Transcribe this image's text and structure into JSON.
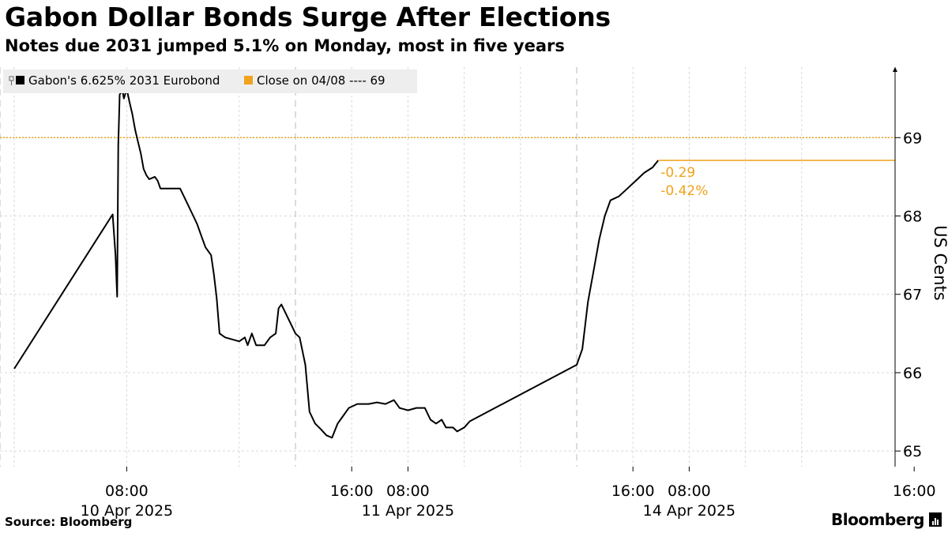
{
  "title": "Gabon Dollar Bonds Surge After Elections",
  "subtitle": "Notes due 2031 jumped 5.1% on Monday, most in five years",
  "source": "Source: Bloomberg",
  "logo_text": "Bloomberg",
  "colors": {
    "series": "#000000",
    "reference": "#f0a31c",
    "grid": "#d9d9d9",
    "legend_bg": "#eeeeee"
  },
  "chart_data": {
    "type": "line",
    "title": "Gabon Dollar Bonds Surge After Elections",
    "subtitle": "Notes due 2031 jumped 5.1% on Monday, most in five years",
    "ylabel": "US Cents",
    "ylim": [
      64.8,
      69.9
    ],
    "y_ticks": [
      65,
      66,
      67,
      68,
      69
    ],
    "y_axis_side": "right",
    "x_session_hours": [
      "04:00",
      "08:00",
      "12:00",
      "16:00",
      "20:00"
    ],
    "x_labels": [
      {
        "day": 0,
        "time": "08:00",
        "date": "10 Apr 2025"
      },
      {
        "day": 0,
        "time": "16:00",
        "date": ""
      },
      {
        "day": 1,
        "time": "08:00",
        "date": "11 Apr 2025"
      },
      {
        "day": 1,
        "time": "16:00",
        "date": ""
      },
      {
        "day": 2,
        "time": "08:00",
        "date": "14 Apr 2025"
      },
      {
        "day": 2,
        "time": "16:00",
        "date": ""
      }
    ],
    "grid": true,
    "legend_position": "top-left",
    "reference_line": {
      "name": "Close on 04/08 ---- 69",
      "value": 69
    },
    "last_change": {
      "abs": "-0.29",
      "pct": "-0.42%",
      "value": 68.71
    },
    "series": [
      {
        "name": "Gabon's 6.625% 2031 Eurobond",
        "points": [
          [
            0,
            0.0,
            66.05
          ],
          [
            0,
            3.5,
            68.02
          ],
          [
            0,
            3.6,
            67.5
          ],
          [
            0,
            3.66,
            66.97
          ],
          [
            0,
            3.7,
            68.9
          ],
          [
            0,
            3.75,
            69.55
          ],
          [
            0,
            3.85,
            69.6
          ],
          [
            0,
            3.9,
            69.5
          ],
          [
            0,
            4.0,
            69.62
          ],
          [
            0,
            4.1,
            69.45
          ],
          [
            0,
            4.2,
            69.3
          ],
          [
            0,
            4.3,
            69.1
          ],
          [
            0,
            4.4,
            68.95
          ],
          [
            0,
            4.5,
            68.8
          ],
          [
            0,
            4.6,
            68.6
          ],
          [
            0,
            4.7,
            68.52
          ],
          [
            0,
            4.8,
            68.47
          ],
          [
            0,
            5.0,
            68.5
          ],
          [
            0,
            5.1,
            68.45
          ],
          [
            0,
            5.2,
            68.35
          ],
          [
            0,
            5.5,
            68.35
          ],
          [
            0,
            5.9,
            68.35
          ],
          [
            0,
            6.1,
            68.2
          ],
          [
            0,
            6.3,
            68.05
          ],
          [
            0,
            6.5,
            67.9
          ],
          [
            0,
            6.7,
            67.7
          ],
          [
            0,
            6.8,
            67.6
          ],
          [
            0,
            7.0,
            67.5
          ],
          [
            0,
            7.1,
            67.25
          ],
          [
            0,
            7.2,
            66.95
          ],
          [
            0,
            7.3,
            66.5
          ],
          [
            0,
            7.5,
            66.45
          ],
          [
            0,
            7.8,
            66.42
          ],
          [
            0,
            8.0,
            66.4
          ],
          [
            0,
            8.2,
            66.45
          ],
          [
            0,
            8.3,
            66.35
          ],
          [
            0,
            8.45,
            66.5
          ],
          [
            0,
            8.6,
            66.35
          ],
          [
            0,
            8.9,
            66.35
          ],
          [
            0,
            9.1,
            66.45
          ],
          [
            0,
            9.3,
            66.5
          ],
          [
            0,
            9.4,
            66.82
          ],
          [
            0,
            9.5,
            66.87
          ],
          [
            1,
            0.0,
            66.5
          ],
          [
            1,
            0.15,
            66.45
          ],
          [
            1,
            0.35,
            66.1
          ],
          [
            1,
            0.5,
            65.5
          ],
          [
            1,
            0.7,
            65.35
          ],
          [
            1,
            0.9,
            65.28
          ],
          [
            1,
            1.1,
            65.2
          ],
          [
            1,
            1.3,
            65.17
          ],
          [
            1,
            1.5,
            65.35
          ],
          [
            1,
            1.7,
            65.45
          ],
          [
            1,
            1.9,
            65.55
          ],
          [
            1,
            2.2,
            65.6
          ],
          [
            1,
            2.6,
            65.6
          ],
          [
            1,
            2.9,
            65.62
          ],
          [
            1,
            3.2,
            65.6
          ],
          [
            1,
            3.5,
            65.65
          ],
          [
            1,
            3.7,
            65.55
          ],
          [
            1,
            4.0,
            65.52
          ],
          [
            1,
            4.3,
            65.55
          ],
          [
            1,
            4.6,
            65.55
          ],
          [
            1,
            4.8,
            65.4
          ],
          [
            1,
            5.0,
            65.35
          ],
          [
            1,
            5.2,
            65.4
          ],
          [
            1,
            5.35,
            65.3
          ],
          [
            1,
            5.6,
            65.3
          ],
          [
            1,
            5.75,
            65.25
          ],
          [
            1,
            6.0,
            65.3
          ],
          [
            1,
            6.2,
            65.38
          ],
          [
            2,
            0.0,
            66.1
          ],
          [
            2,
            0.2,
            66.3
          ],
          [
            2,
            0.4,
            66.9
          ],
          [
            2,
            0.6,
            67.3
          ],
          [
            2,
            0.8,
            67.7
          ],
          [
            2,
            1.0,
            68.0
          ],
          [
            2,
            1.2,
            68.2
          ],
          [
            2,
            1.5,
            68.25
          ],
          [
            2,
            1.8,
            68.35
          ],
          [
            2,
            2.1,
            68.45
          ],
          [
            2,
            2.4,
            68.55
          ],
          [
            2,
            2.7,
            68.62
          ],
          [
            2,
            2.9,
            68.71
          ]
        ]
      }
    ]
  }
}
